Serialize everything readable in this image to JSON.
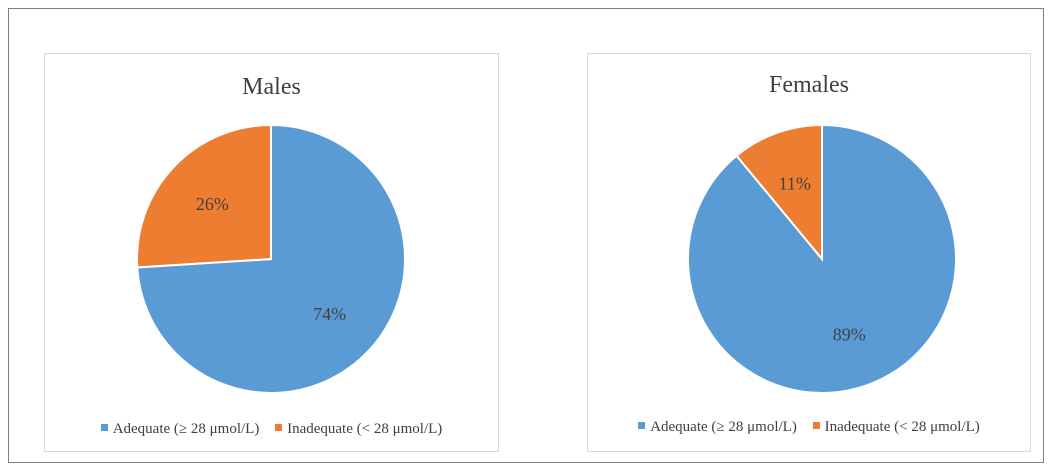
{
  "chart_data": [
    {
      "type": "pie",
      "title": "Males",
      "categories": [
        "Adequate (≥ 28 μmol/L)",
        "Inadequate (< 28 μmol/L)"
      ],
      "values": [
        74,
        26
      ],
      "labels": [
        "74%",
        "26%"
      ],
      "colors": [
        "#5b9bd5",
        "#ed7d31"
      ],
      "legend": "bottom"
    },
    {
      "type": "pie",
      "title": "Females",
      "categories": [
        "Adequate (≥ 28 μmol/L)",
        "Inadequate (< 28 μmol/L)"
      ],
      "values": [
        89,
        11
      ],
      "labels": [
        "89%",
        "11%"
      ],
      "colors": [
        "#5b9bd5",
        "#ed7d31"
      ],
      "legend": "bottom"
    }
  ]
}
